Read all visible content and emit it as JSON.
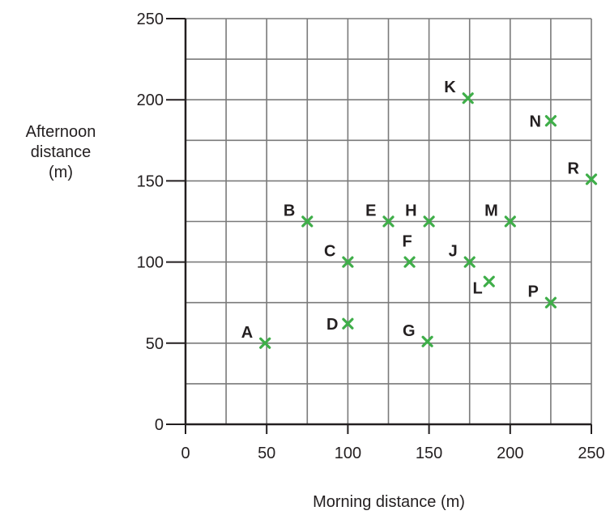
{
  "chart_data": {
    "type": "scatter",
    "xlabel": "Morning distance (m)",
    "ylabel_lines": [
      "Afternoon",
      "distance",
      "(m)"
    ],
    "xlim": [
      0,
      250
    ],
    "ylim": [
      0,
      250
    ],
    "x_ticks": [
      0,
      50,
      100,
      150,
      200,
      250
    ],
    "y_ticks": [
      0,
      50,
      100,
      150,
      200,
      250
    ],
    "grid_step": 25,
    "grid": true,
    "marker": "x",
    "marker_color": "#3fae49",
    "points": [
      {
        "label": "A",
        "x": 49,
        "y": 50,
        "label_side": "left-up"
      },
      {
        "label": "B",
        "x": 75,
        "y": 125,
        "label_side": "left-up"
      },
      {
        "label": "C",
        "x": 100,
        "y": 100,
        "label_side": "left-up"
      },
      {
        "label": "D",
        "x": 100,
        "y": 62,
        "label_side": "left"
      },
      {
        "label": "E",
        "x": 125,
        "y": 125,
        "label_side": "left-up"
      },
      {
        "label": "F",
        "x": 138,
        "y": 100,
        "label_side": "up"
      },
      {
        "label": "G",
        "x": 149,
        "y": 51,
        "label_side": "left-up"
      },
      {
        "label": "H",
        "x": 150,
        "y": 125,
        "label_side": "left-up"
      },
      {
        "label": "J",
        "x": 175,
        "y": 100,
        "label_side": "left-up"
      },
      {
        "label": "K",
        "x": 174,
        "y": 201,
        "label_side": "left-up"
      },
      {
        "label": "L",
        "x": 187,
        "y": 88,
        "label_side": "left-down"
      },
      {
        "label": "M",
        "x": 200,
        "y": 125,
        "label_side": "left-up"
      },
      {
        "label": "N",
        "x": 225,
        "y": 187,
        "label_side": "left"
      },
      {
        "label": "P",
        "x": 225,
        "y": 75,
        "label_side": "left-up"
      },
      {
        "label": "R",
        "x": 250,
        "y": 151,
        "label_side": "left-up"
      }
    ]
  }
}
